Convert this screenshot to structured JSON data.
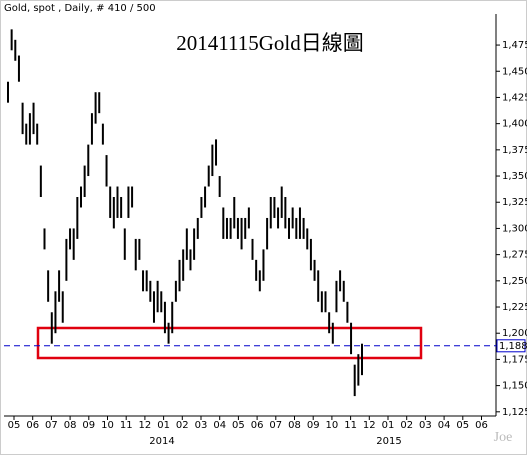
{
  "chart_data": {
    "type": "ohlc",
    "header": "Gold, spot , Daily, # 410 / 500",
    "title": "20141115Gold日線圖",
    "watermark": "Joe",
    "color": "#000000",
    "categories": [
      "05",
      "06",
      "07",
      "08",
      "09",
      "10",
      "11",
      "12",
      "01",
      "02",
      "03",
      "04",
      "05",
      "06",
      "07",
      "08",
      "09",
      "10",
      "11",
      "12",
      "01",
      "02",
      "03",
      "04",
      "05",
      "06"
    ],
    "years": [
      "2014",
      "2015"
    ],
    "high": [
      1440,
      1490,
      1480,
      1465,
      1420,
      1400,
      1410,
      1420,
      1400,
      1360,
      1300,
      1260,
      1220,
      1240,
      1260,
      1240,
      1290,
      1300,
      1300,
      1330,
      1340,
      1360,
      1380,
      1410,
      1430,
      1430,
      1400,
      1370,
      1340,
      1330,
      1340,
      1330,
      1300,
      1340,
      1340,
      1290,
      1290,
      1260,
      1260,
      1250,
      1240,
      1250,
      1240,
      1230,
      1210,
      1230,
      1250,
      1270,
      1280,
      1300,
      1280,
      1300,
      1310,
      1330,
      1340,
      1360,
      1380,
      1385,
      1350,
      1320,
      1310,
      1310,
      1330,
      1310,
      1310,
      1310,
      1320,
      1290,
      1270,
      1260,
      1280,
      1310,
      1330,
      1330,
      1320,
      1340,
      1330,
      1310,
      1320,
      1310,
      1320,
      1310,
      1300,
      1290,
      1270,
      1260,
      1240,
      1240,
      1220,
      1210,
      1250,
      1260,
      1250,
      1230,
      1210,
      1170,
      1180,
      1190
    ],
    "low": [
      1420,
      1470,
      1460,
      1440,
      1390,
      1380,
      1380,
      1390,
      1380,
      1330,
      1280,
      1230,
      1190,
      1200,
      1230,
      1210,
      1250,
      1280,
      1270,
      1290,
      1320,
      1330,
      1350,
      1380,
      1400,
      1410,
      1380,
      1340,
      1310,
      1300,
      1310,
      1310,
      1270,
      1310,
      1320,
      1260,
      1270,
      1240,
      1240,
      1230,
      1210,
      1220,
      1220,
      1200,
      1190,
      1200,
      1230,
      1240,
      1250,
      1270,
      1260,
      1270,
      1290,
      1310,
      1320,
      1340,
      1350,
      1360,
      1330,
      1290,
      1290,
      1290,
      1300,
      1290,
      1280,
      1290,
      1300,
      1270,
      1250,
      1240,
      1250,
      1280,
      1300,
      1310,
      1300,
      1310,
      1300,
      1290,
      1300,
      1290,
      1290,
      1290,
      1280,
      1260,
      1250,
      1230,
      1220,
      1220,
      1200,
      1190,
      1220,
      1240,
      1230,
      1210,
      1180,
      1140,
      1150,
      1160
    ],
    "ylim": [
      1121,
      1518
    ],
    "yticks": [
      {
        "value": 1125,
        "label": "1,125"
      },
      {
        "value": 1150,
        "label": "1,150"
      },
      {
        "value": 1175,
        "label": "1,175"
      },
      {
        "value": 1200,
        "label": "1,200"
      },
      {
        "value": 1225,
        "label": "1,225"
      },
      {
        "value": 1250,
        "label": "1,250"
      },
      {
        "value": 1275,
        "label": "1,275"
      },
      {
        "value": 1300,
        "label": "1,300"
      },
      {
        "value": 1325,
        "label": "1,325"
      },
      {
        "value": 1350,
        "label": "1,350"
      },
      {
        "value": 1375,
        "label": "1,375"
      },
      {
        "value": 1400,
        "label": "1,400"
      },
      {
        "value": 1425,
        "label": "1,425"
      },
      {
        "value": 1450,
        "label": "1,450"
      },
      {
        "value": 1475,
        "label": "1,475"
      }
    ],
    "reference_line": {
      "value": 1188,
      "label": "1,188",
      "color": "#0000cc"
    },
    "highlight_color": "#e0000f"
  }
}
